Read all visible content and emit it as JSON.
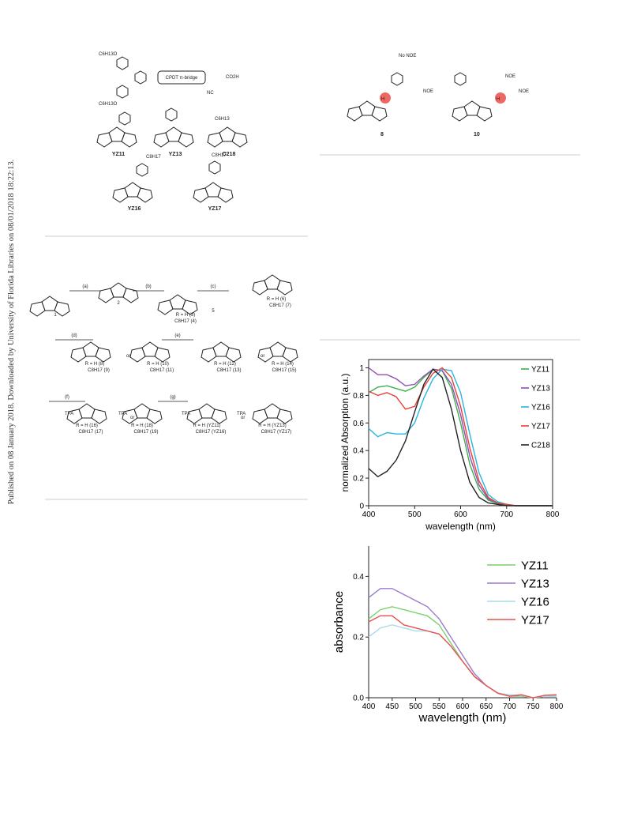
{
  "sidebar": "Published on 08 January 2018. Downloaded by University of Florida Libraries on 08/01/2018 18:22:13.",
  "figure_structures": {
    "bridge": "CPDT π-bridge",
    "donor_chain": "C6H13O",
    "acid": "CO2H",
    "nitrile": "NC",
    "compounds": [
      "YZ11",
      "YZ13",
      "C218",
      "YZ16",
      "YZ17"
    ],
    "chain": "C8H17",
    "chain2": "C6H13"
  },
  "figure_noe": {
    "no_noe": "No NOE",
    "noe": [
      "NOE",
      "NOE",
      "NOE"
    ],
    "h": [
      "H",
      "H"
    ],
    "compounds": [
      "8",
      "10"
    ]
  },
  "scheme": {
    "steps": [
      "(a)",
      "(b)",
      "(c)",
      "(d)",
      "(e)",
      "(f)",
      "(g)"
    ],
    "compounds": [
      "1",
      "2",
      "R = H (3)",
      "C8H17 (4)",
      "5",
      "R = H (6)",
      "C8H17 (7)",
      "R = H (8)",
      "C8H17 (9)",
      "R = H (10)",
      "C8H17 (11)",
      "R = H (12)",
      "C8H17 (13)",
      "R = H (14)",
      "C8H17 (15)",
      "R = H (16)",
      "C8H17 (17)",
      "R = H (18)",
      "C8H17 (19)",
      "R = H (YZ11)",
      "C8H17 (YZ16)",
      "R = H (YZ13)",
      "C8H17 (YZ17)"
    ],
    "or": "or",
    "tpa": "TPA"
  },
  "chart_data": [
    {
      "type": "line",
      "ylabel": "normalized Absorption (a.u.)",
      "xlabel": "wavelength (nm)",
      "x": [
        400,
        420,
        440,
        460,
        480,
        500,
        520,
        540,
        560,
        580,
        600,
        620,
        640,
        660,
        680,
        700,
        720,
        740,
        760,
        780,
        800
      ],
      "xlim": [
        400,
        800
      ],
      "xticks": [
        400,
        500,
        600,
        700,
        800
      ],
      "ylim": [
        0,
        1.06
      ],
      "yticks": [
        0,
        0.2,
        0.4,
        0.6,
        0.8,
        1
      ],
      "legend": "upper right",
      "series": [
        {
          "name": "YZ11",
          "color": "#3cb04a",
          "values": [
            0.82,
            0.86,
            0.87,
            0.85,
            0.83,
            0.86,
            0.93,
            0.99,
            0.98,
            0.85,
            0.6,
            0.3,
            0.12,
            0.04,
            0.015,
            0.005,
            0,
            0,
            0,
            0,
            0
          ]
        },
        {
          "name": "YZ13",
          "color": "#8e4fb5",
          "values": [
            1.0,
            0.95,
            0.95,
            0.92,
            0.87,
            0.88,
            0.94,
            0.99,
            0.98,
            0.88,
            0.66,
            0.36,
            0.15,
            0.05,
            0.02,
            0.01,
            0,
            0,
            0,
            0,
            0
          ]
        },
        {
          "name": "YZ16",
          "color": "#29b6e0",
          "values": [
            0.56,
            0.5,
            0.53,
            0.52,
            0.52,
            0.6,
            0.78,
            0.92,
            0.99,
            0.98,
            0.82,
            0.52,
            0.24,
            0.08,
            0.03,
            0.01,
            0,
            0,
            0,
            0,
            0
          ]
        },
        {
          "name": "YZ17",
          "color": "#e8413c",
          "values": [
            0.83,
            0.8,
            0.82,
            0.79,
            0.7,
            0.72,
            0.86,
            0.96,
            1.0,
            0.93,
            0.72,
            0.42,
            0.18,
            0.06,
            0.02,
            0.01,
            0,
            0,
            0,
            0,
            0
          ]
        },
        {
          "name": "C218",
          "color": "#222222",
          "values": [
            0.27,
            0.21,
            0.25,
            0.33,
            0.47,
            0.68,
            0.88,
            0.99,
            0.93,
            0.7,
            0.4,
            0.17,
            0.06,
            0.02,
            0.01,
            0,
            0,
            0,
            0,
            0,
            0
          ]
        }
      ]
    },
    {
      "type": "line",
      "ylabel": "absorbance",
      "xlabel": "wavelength (nm)",
      "x": [
        400,
        425,
        450,
        475,
        500,
        525,
        550,
        575,
        600,
        625,
        650,
        675,
        700,
        725,
        750,
        775,
        800
      ],
      "xlim": [
        400,
        800
      ],
      "xticks": [
        400,
        450,
        500,
        550,
        600,
        650,
        700,
        750,
        800
      ],
      "ylim": [
        0,
        0.5
      ],
      "yticks": [
        {
          "value": 0,
          "label": "0.0"
        },
        0.2,
        0.4
      ],
      "legend": "upper right",
      "series": [
        {
          "name": "YZ11",
          "color": "#7dcf6e",
          "values": [
            0.26,
            0.29,
            0.3,
            0.29,
            0.28,
            0.27,
            0.24,
            0.18,
            0.12,
            0.07,
            0.04,
            0.015,
            0.005,
            0.005,
            0,
            0.005,
            0.008
          ]
        },
        {
          "name": "YZ13",
          "color": "#9a7cc9",
          "values": [
            0.33,
            0.36,
            0.36,
            0.34,
            0.32,
            0.3,
            0.26,
            0.2,
            0.14,
            0.08,
            0.04,
            0.015,
            0.005,
            0.008,
            0,
            0.005,
            0.005
          ]
        },
        {
          "name": "YZ16",
          "color": "#a9dced",
          "values": [
            0.2,
            0.23,
            0.24,
            0.23,
            0.22,
            0.22,
            0.21,
            0.17,
            0.12,
            0.07,
            0.04,
            0.015,
            0.01,
            0.008,
            0,
            0.005,
            0.005
          ]
        },
        {
          "name": "YZ17",
          "color": "#e8504c",
          "values": [
            0.25,
            0.27,
            0.27,
            0.24,
            0.23,
            0.22,
            0.21,
            0.17,
            0.12,
            0.07,
            0.04,
            0.015,
            0.005,
            0.01,
            0,
            0.008,
            0.01
          ]
        }
      ]
    }
  ]
}
